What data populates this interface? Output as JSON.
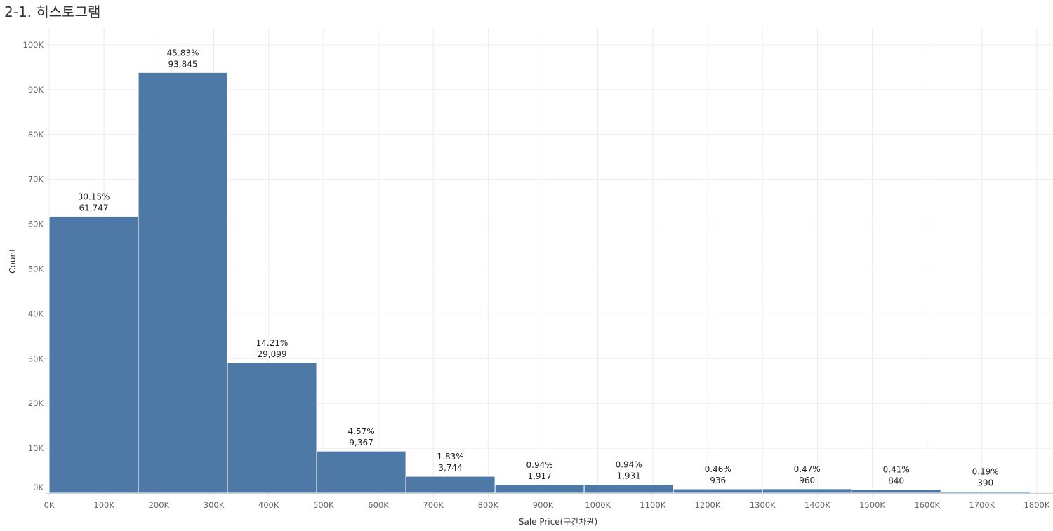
{
  "page": {
    "title": "2-1. 히스토그램"
  },
  "chart_data": {
    "type": "bar",
    "title": "2-1. 히스토그램",
    "xlabel": "Sale Price(구간차원)",
    "ylabel": "Count",
    "bin_width": 162500,
    "bins": [
      {
        "start": 0,
        "value": 61747,
        "pct": "30.15%",
        "label": "61,747"
      },
      {
        "start": 162500,
        "value": 93845,
        "pct": "45.83%",
        "label": "93,845"
      },
      {
        "start": 325000,
        "value": 29099,
        "pct": "14.21%",
        "label": "29,099"
      },
      {
        "start": 487500,
        "value": 9367,
        "pct": "4.57%",
        "label": "9,367"
      },
      {
        "start": 650000,
        "value": 3744,
        "pct": "1.83%",
        "label": "3,744"
      },
      {
        "start": 812500,
        "value": 1917,
        "pct": "0.94%",
        "label": "1,917"
      },
      {
        "start": 975000,
        "value": 1931,
        "pct": "0.94%",
        "label": "1,931"
      },
      {
        "start": 1137500,
        "value": 936,
        "pct": "0.46%",
        "label": "936"
      },
      {
        "start": 1300000,
        "value": 960,
        "pct": "0.47%",
        "label": "960"
      },
      {
        "start": 1462500,
        "value": 840,
        "pct": "0.41%",
        "label": "840"
      },
      {
        "start": 1625000,
        "value": 390,
        "pct": "0.19%",
        "label": "390"
      }
    ],
    "xlim": [
      0,
      1800000
    ],
    "ylim": [
      0,
      100000
    ],
    "x_ticks": [
      {
        "value": 0,
        "label": "0K"
      },
      {
        "value": 100000,
        "label": "100K"
      },
      {
        "value": 200000,
        "label": "200K"
      },
      {
        "value": 300000,
        "label": "300K"
      },
      {
        "value": 400000,
        "label": "400K"
      },
      {
        "value": 500000,
        "label": "500K"
      },
      {
        "value": 600000,
        "label": "600K"
      },
      {
        "value": 700000,
        "label": "700K"
      },
      {
        "value": 800000,
        "label": "800K"
      },
      {
        "value": 900000,
        "label": "900K"
      },
      {
        "value": 1000000,
        "label": "1000K"
      },
      {
        "value": 1100000,
        "label": "1100K"
      },
      {
        "value": 1200000,
        "label": "1200K"
      },
      {
        "value": 1300000,
        "label": "1300K"
      },
      {
        "value": 1400000,
        "label": "1400K"
      },
      {
        "value": 1500000,
        "label": "1500K"
      },
      {
        "value": 1600000,
        "label": "1600K"
      },
      {
        "value": 1700000,
        "label": "1700K"
      },
      {
        "value": 1800000,
        "label": "1800K"
      }
    ],
    "y_ticks": [
      {
        "value": 0,
        "label": "0K"
      },
      {
        "value": 10000,
        "label": "10K"
      },
      {
        "value": 20000,
        "label": "20K"
      },
      {
        "value": 30000,
        "label": "30K"
      },
      {
        "value": 40000,
        "label": "40K"
      },
      {
        "value": 50000,
        "label": "50K"
      },
      {
        "value": 60000,
        "label": "60K"
      },
      {
        "value": 70000,
        "label": "70K"
      },
      {
        "value": 80000,
        "label": "80K"
      },
      {
        "value": 90000,
        "label": "90K"
      },
      {
        "value": 100000,
        "label": "100K"
      }
    ],
    "grid": true,
    "colors": {
      "bar": "#4e79a7",
      "bar_border": "#ffffff",
      "grid": "#ececec",
      "tick_text": "#666666",
      "label_text": "#222222"
    }
  }
}
